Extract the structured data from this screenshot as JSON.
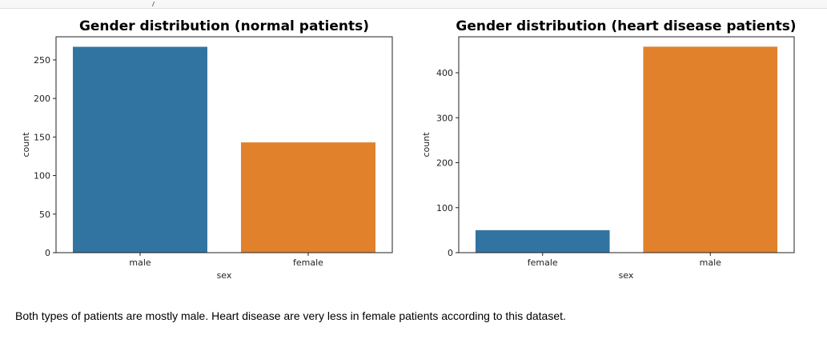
{
  "caption": "Both types of patients are mostly male. Heart disease are very less in female patients according to this dataset.",
  "chart_data": [
    {
      "type": "bar",
      "title": "Gender distribution (normal patients)",
      "xlabel": "sex",
      "ylabel": "count",
      "categories": [
        "male",
        "female"
      ],
      "values": [
        267,
        143
      ],
      "colors": [
        "#3274a1",
        "#e1812c"
      ],
      "ylim": [
        0,
        280
      ],
      "yticks": [
        0,
        50,
        100,
        150,
        200,
        250
      ],
      "grid": false
    },
    {
      "type": "bar",
      "title": "Gender distribution (heart disease patients)",
      "xlabel": "sex",
      "ylabel": "count",
      "categories": [
        "female",
        "male"
      ],
      "values": [
        50,
        458
      ],
      "colors": [
        "#3274a1",
        "#e1812c"
      ],
      "ylim": [
        0,
        480
      ],
      "yticks": [
        0,
        100,
        200,
        300,
        400
      ],
      "grid": false
    }
  ]
}
